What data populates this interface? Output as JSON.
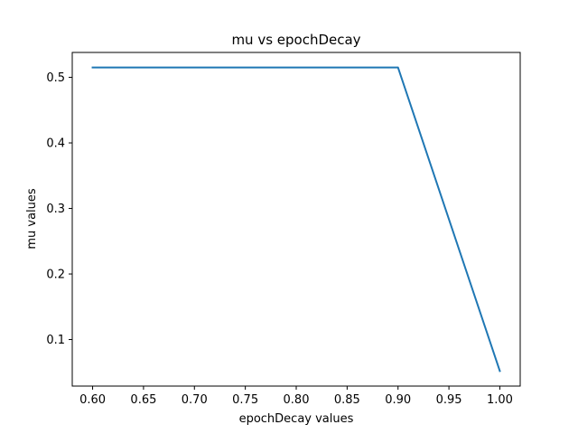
{
  "chart_data": {
    "type": "line",
    "title": "mu vs epochDecay",
    "xlabel": "epochDecay values",
    "ylabel": "mu values",
    "x": [
      0.6,
      0.7,
      0.8,
      0.9,
      1.0
    ],
    "series": [
      {
        "values": [
          0.515,
          0.515,
          0.515,
          0.515,
          0.052
        ]
      }
    ],
    "xlim": [
      0.58,
      1.02
    ],
    "ylim": [
      0.029,
      0.538
    ],
    "xticks": [
      "0.60",
      "0.65",
      "0.70",
      "0.75",
      "0.80",
      "0.85",
      "0.90",
      "0.95",
      "1.00"
    ],
    "yticks": [
      "0.1",
      "0.2",
      "0.3",
      "0.4",
      "0.5"
    ],
    "grid": false,
    "colors": {
      "line": "#1f77b4",
      "axes": "#000000",
      "background": "#ffffff"
    }
  }
}
